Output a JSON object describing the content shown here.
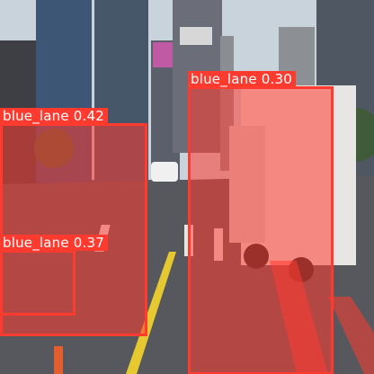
{
  "detections": [
    {
      "label": "blue_lane 0.42",
      "class": "blue_lane",
      "confidence": 0.42
    },
    {
      "label": "blue_lane 0.30",
      "class": "blue_lane",
      "confidence": 0.3
    },
    {
      "label": "blue_lane 0.37",
      "class": "blue_lane",
      "confidence": 0.37
    }
  ],
  "colors": {
    "box": "#ff3b30",
    "mask": "#ff3b30"
  }
}
